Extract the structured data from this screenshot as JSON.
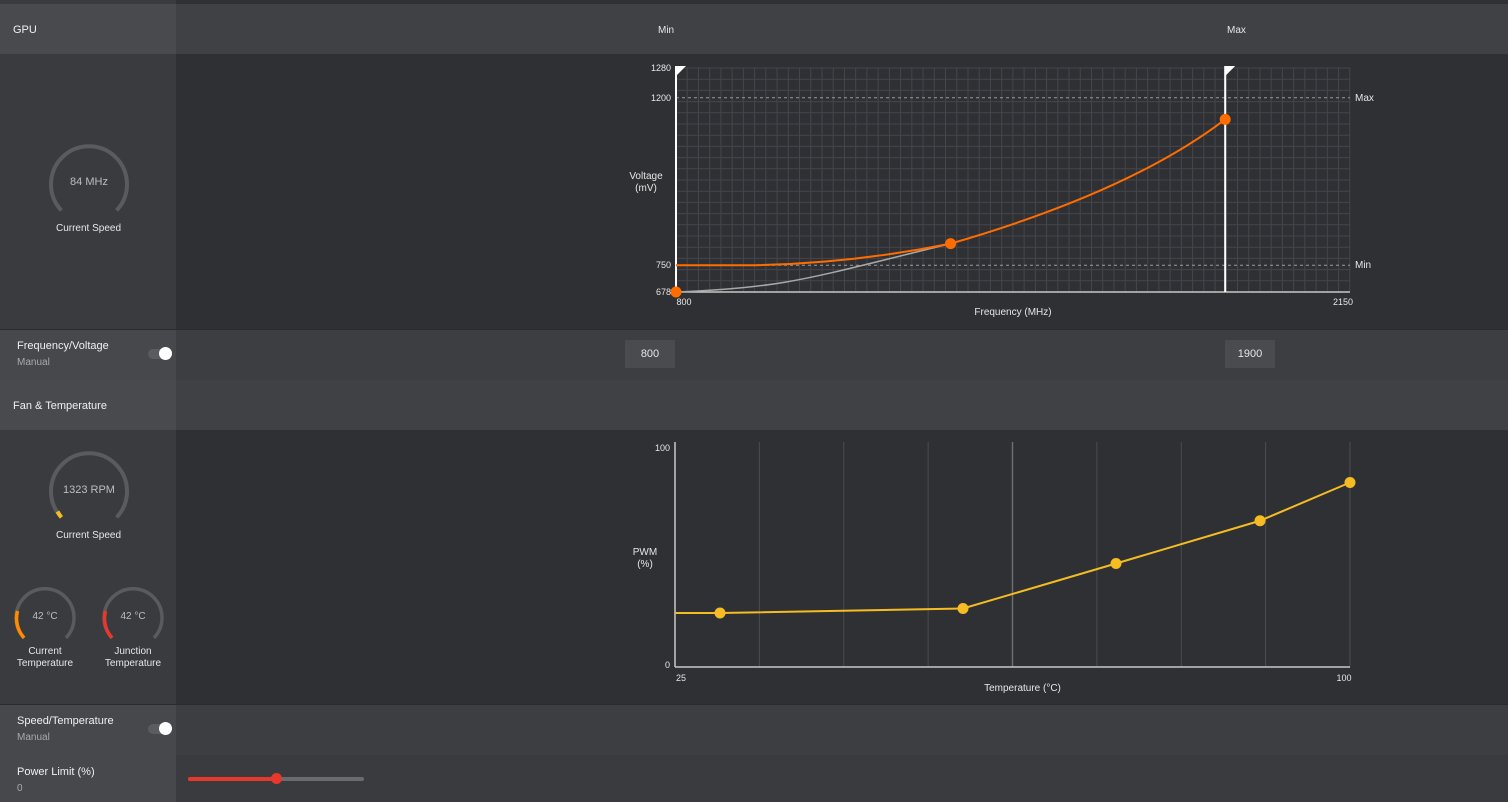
{
  "gpu": {
    "title": "GPU",
    "min_label": "Min",
    "max_label": "Max",
    "current_speed": {
      "value": "84 MHz",
      "label": "Current Speed"
    },
    "voltage_chart": {
      "ylabel_line1": "Voltage",
      "ylabel_line2": "(mV)",
      "xlabel": "Frequency (MHz)",
      "y_ticks": [
        "1280",
        "1200",
        "750",
        "678"
      ],
      "x_ticks": [
        "800",
        "2150"
      ],
      "max_line_label": "Max",
      "min_line_label": "Min"
    },
    "freq_voltage": {
      "title": "Frequency/Voltage",
      "mode": "Manual",
      "min_value": "800",
      "max_value": "1900"
    }
  },
  "fan": {
    "title": "Fan & Temperature",
    "current_speed": {
      "value": "1323 RPM",
      "label": "Current Speed"
    },
    "current_temperature": {
      "value": "42 °C",
      "label_line1": "Current",
      "label_line2": "Temperature"
    },
    "junction_temperature": {
      "value": "42 °C",
      "label_line1": "Junction",
      "label_line2": "Temperature"
    },
    "fan_chart": {
      "ylabel_line1": "PWM",
      "ylabel_line2": "(%)",
      "xlabel": "Temperature (°C)",
      "y_ticks": [
        "100",
        "0"
      ],
      "x_ticks": [
        "25",
        "100"
      ]
    },
    "speed_temperature": {
      "title": "Speed/Temperature",
      "mode": "Manual"
    }
  },
  "power_limit": {
    "title": "Power Limit (%)",
    "value": "0",
    "slider_fraction": 0.5
  },
  "colors": {
    "accent_orange": "#ff6d00",
    "accent_yellow": "#f5bd22",
    "slider_red": "#e8372b"
  },
  "chart_data": [
    {
      "type": "line",
      "xlabel": "Frequency (MHz)",
      "ylabel": "Voltage (mV)",
      "xlim": [
        800,
        2150
      ],
      "ylim": [
        678,
        1280
      ],
      "min_marker_x": 800,
      "max_marker_x": 1900,
      "max_voltage_line": 1200,
      "min_voltage_line": 750,
      "series": [
        {
          "x": [
            800,
            1350,
            1900
          ],
          "y": [
            678,
            808,
            1142
          ]
        }
      ]
    },
    {
      "type": "line",
      "xlabel": "Temperature (°C)",
      "ylabel": "PWM (%)",
      "xlim": [
        25,
        100
      ],
      "ylim": [
        0,
        100
      ],
      "series": [
        {
          "x": [
            30,
            57,
            74,
            90,
            100
          ],
          "y": [
            24,
            26,
            46,
            65,
            82
          ]
        }
      ]
    }
  ]
}
